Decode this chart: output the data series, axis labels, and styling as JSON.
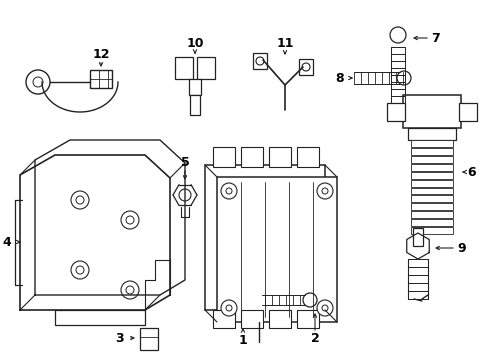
{
  "bg_color": "#ffffff",
  "line_color": "#222222",
  "label_color": "#000000",
  "figsize": [
    4.89,
    3.6
  ],
  "dpi": 100
}
